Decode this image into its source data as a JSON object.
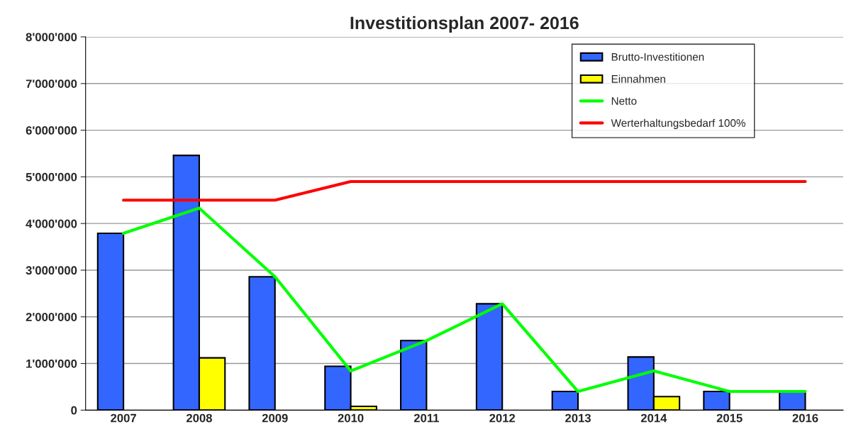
{
  "chart_data": {
    "type": "bar",
    "title": "Investitionsplan 2007- 2016",
    "categories": [
      "2007",
      "2008",
      "2009",
      "2010",
      "2011",
      "2012",
      "2013",
      "2014",
      "2015",
      "2016"
    ],
    "series": [
      {
        "name": "Brutto-Investitionen",
        "color": "#3366ff",
        "values": [
          3790000,
          5460000,
          2860000,
          940000,
          1490000,
          2280000,
          400000,
          1140000,
          400000,
          400000
        ]
      },
      {
        "name": "Einnahmen",
        "color": "#ffff00",
        "values": [
          null,
          1120000,
          null,
          80000,
          null,
          null,
          null,
          290000,
          null,
          null
        ]
      },
      {
        "name": "Netto",
        "type": "line",
        "color": "#00ff00",
        "values": [
          3790000,
          4330000,
          2860000,
          840000,
          1490000,
          2280000,
          400000,
          840000,
          400000,
          400000
        ]
      },
      {
        "name": "Werterhaltungsbedarf 100%",
        "type": "line",
        "color": "#ff0000",
        "values": [
          4500000,
          4500000,
          4500000,
          4900000,
          4900000,
          4900000,
          4900000,
          4900000,
          4900000,
          4900000
        ]
      }
    ],
    "ylim": [
      0,
      8000000
    ],
    "yticks": [
      {
        "value": 0,
        "label": "0"
      },
      {
        "value": 1000000,
        "label": "1'000'000"
      },
      {
        "value": 2000000,
        "label": "2'000'000"
      },
      {
        "value": 3000000,
        "label": "3'000'000"
      },
      {
        "value": 4000000,
        "label": "4'000'000"
      },
      {
        "value": 5000000,
        "label": "5'000'000"
      },
      {
        "value": 6000000,
        "label": "6'000'000"
      },
      {
        "value": 7000000,
        "label": "7'000'000"
      },
      {
        "value": 8000000,
        "label": "8'000'000"
      }
    ],
    "grid": "y",
    "legend": "top right"
  }
}
